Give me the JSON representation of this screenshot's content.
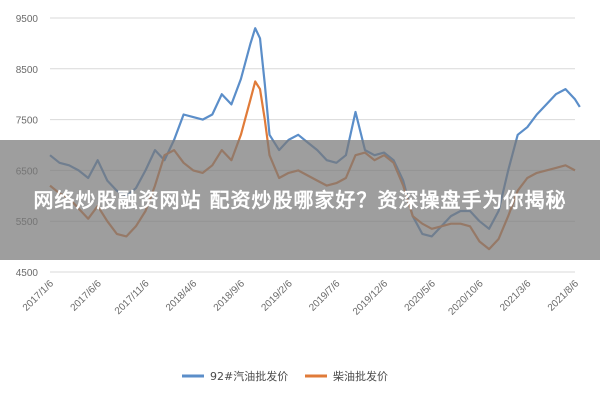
{
  "overlay": {
    "headline": "网络炒股融资网站 配资炒股哪家好？资深操盘手为你揭秘"
  },
  "colors": {
    "series_92": "#5b8ec9",
    "series_diesel": "#e07b39",
    "grid": "#d9d9d9",
    "banner": "#7a7a7a"
  },
  "chart_data": {
    "type": "line",
    "ylim": [
      4500,
      9500
    ],
    "yticks": [
      4500,
      5500,
      6500,
      7500,
      8500,
      9500
    ],
    "xticks": [
      "2017/1/6",
      "2017/6/6",
      "2017/11/6",
      "2018/4/6",
      "2018/9/6",
      "2019/2/6",
      "2019/7/6",
      "2019/12/6",
      "2020/5/6",
      "2020/10/6",
      "2021/3/6",
      "2021/8/6"
    ],
    "grid": true,
    "legend_position": "bottom",
    "series": [
      {
        "name": "92#汽油批发价",
        "values": [
          [
            0,
            6800
          ],
          [
            0.2,
            6650
          ],
          [
            0.4,
            6600
          ],
          [
            0.6,
            6500
          ],
          [
            0.8,
            6350
          ],
          [
            1.0,
            6700
          ],
          [
            1.2,
            6300
          ],
          [
            1.4,
            6100
          ],
          [
            1.6,
            6000
          ],
          [
            1.8,
            6150
          ],
          [
            2.0,
            6500
          ],
          [
            2.2,
            6900
          ],
          [
            2.4,
            6700
          ],
          [
            2.6,
            7100
          ],
          [
            2.8,
            7600
          ],
          [
            3.0,
            7550
          ],
          [
            3.2,
            7500
          ],
          [
            3.4,
            7600
          ],
          [
            3.6,
            8000
          ],
          [
            3.8,
            7800
          ],
          [
            4.0,
            8300
          ],
          [
            4.2,
            9000
          ],
          [
            4.3,
            9300
          ],
          [
            4.4,
            9100
          ],
          [
            4.5,
            8200
          ],
          [
            4.6,
            7200
          ],
          [
            4.8,
            6900
          ],
          [
            5.0,
            7100
          ],
          [
            5.2,
            7200
          ],
          [
            5.4,
            7050
          ],
          [
            5.6,
            6900
          ],
          [
            5.8,
            6700
          ],
          [
            6.0,
            6650
          ],
          [
            6.2,
            6800
          ],
          [
            6.4,
            7650
          ],
          [
            6.6,
            6900
          ],
          [
            6.8,
            6800
          ],
          [
            7.0,
            6850
          ],
          [
            7.2,
            6700
          ],
          [
            7.4,
            6300
          ],
          [
            7.6,
            5600
          ],
          [
            7.8,
            5250
          ],
          [
            8.0,
            5200
          ],
          [
            8.2,
            5400
          ],
          [
            8.4,
            5600
          ],
          [
            8.6,
            5700
          ],
          [
            8.8,
            5700
          ],
          [
            9.0,
            5500
          ],
          [
            9.2,
            5350
          ],
          [
            9.4,
            5700
          ],
          [
            9.6,
            6500
          ],
          [
            9.8,
            7200
          ],
          [
            10.0,
            7350
          ],
          [
            10.2,
            7600
          ],
          [
            10.4,
            7800
          ],
          [
            10.6,
            8000
          ],
          [
            10.8,
            8100
          ],
          [
            11.0,
            7900
          ],
          [
            11.1,
            7750
          ]
        ]
      },
      {
        "name": "柴油批发价",
        "values": [
          [
            0,
            6200
          ],
          [
            0.2,
            6050
          ],
          [
            0.4,
            5950
          ],
          [
            0.6,
            5750
          ],
          [
            0.8,
            5550
          ],
          [
            1.0,
            5800
          ],
          [
            1.2,
            5500
          ],
          [
            1.4,
            5250
          ],
          [
            1.6,
            5200
          ],
          [
            1.8,
            5400
          ],
          [
            2.0,
            5700
          ],
          [
            2.2,
            6200
          ],
          [
            2.4,
            6800
          ],
          [
            2.6,
            6900
          ],
          [
            2.8,
            6650
          ],
          [
            3.0,
            6500
          ],
          [
            3.2,
            6450
          ],
          [
            3.4,
            6600
          ],
          [
            3.6,
            6900
          ],
          [
            3.8,
            6700
          ],
          [
            4.0,
            7200
          ],
          [
            4.2,
            7900
          ],
          [
            4.3,
            8250
          ],
          [
            4.4,
            8100
          ],
          [
            4.5,
            7500
          ],
          [
            4.6,
            6800
          ],
          [
            4.8,
            6350
          ],
          [
            5.0,
            6450
          ],
          [
            5.2,
            6500
          ],
          [
            5.4,
            6400
          ],
          [
            5.6,
            6300
          ],
          [
            5.8,
            6200
          ],
          [
            6.0,
            6250
          ],
          [
            6.2,
            6350
          ],
          [
            6.4,
            6800
          ],
          [
            6.6,
            6850
          ],
          [
            6.8,
            6700
          ],
          [
            7.0,
            6800
          ],
          [
            7.2,
            6650
          ],
          [
            7.4,
            6200
          ],
          [
            7.6,
            5600
          ],
          [
            7.8,
            5450
          ],
          [
            8.0,
            5350
          ],
          [
            8.2,
            5400
          ],
          [
            8.4,
            5450
          ],
          [
            8.6,
            5450
          ],
          [
            8.8,
            5400
          ],
          [
            9.0,
            5100
          ],
          [
            9.2,
            4950
          ],
          [
            9.4,
            5150
          ],
          [
            9.6,
            5600
          ],
          [
            9.8,
            6100
          ],
          [
            10.0,
            6350
          ],
          [
            10.2,
            6450
          ],
          [
            10.4,
            6500
          ],
          [
            10.6,
            6550
          ],
          [
            10.8,
            6600
          ],
          [
            11.0,
            6500
          ]
        ]
      }
    ]
  }
}
